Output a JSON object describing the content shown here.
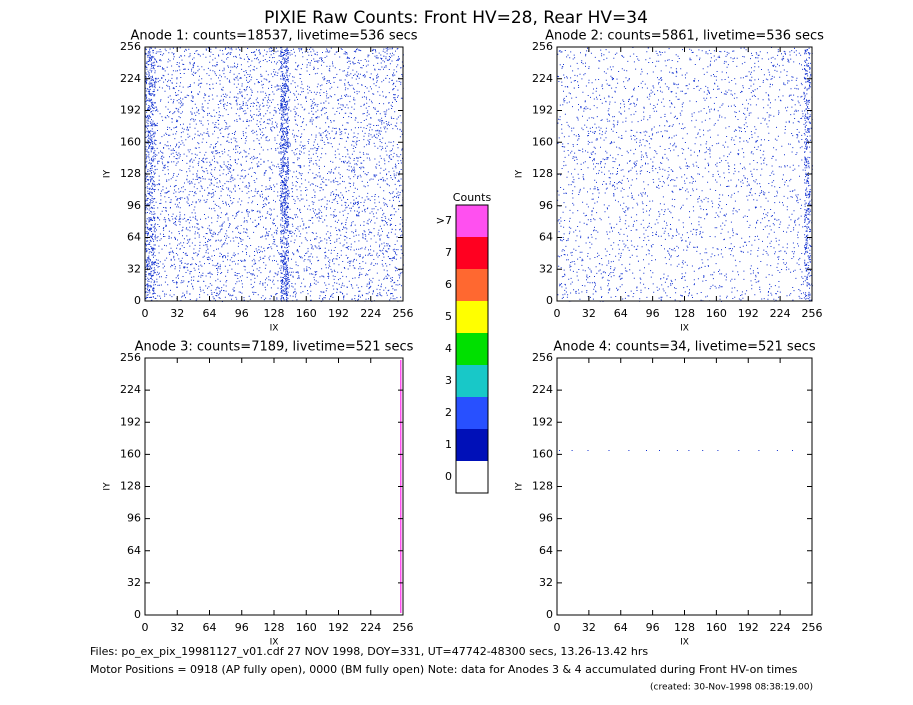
{
  "title": "PIXIE Raw Counts:  Front HV=28, Rear HV=34",
  "chart_data": [
    {
      "type": "heatmap",
      "title": "Anode 1: counts=18537, livetime=536 secs",
      "xlabel": "IX",
      "ylabel": "IY",
      "xlim": [
        0,
        256
      ],
      "ylim": [
        0,
        256
      ],
      "xticks": [
        0,
        32,
        64,
        96,
        128,
        160,
        192,
        224,
        256
      ],
      "yticks": [
        0,
        32,
        64,
        96,
        128,
        160,
        192,
        224,
        256
      ]
    },
    {
      "type": "heatmap",
      "title": "Anode 2: counts=5861, livetime=536 secs",
      "xlabel": "IX",
      "ylabel": "IY",
      "xlim": [
        0,
        256
      ],
      "ylim": [
        0,
        256
      ],
      "xticks": [
        0,
        32,
        64,
        96,
        128,
        160,
        192,
        224,
        256
      ],
      "yticks": [
        0,
        32,
        64,
        96,
        128,
        160,
        192,
        224,
        256
      ]
    },
    {
      "type": "heatmap",
      "title": "Anode 3: counts=7189, livetime=521 secs",
      "xlabel": "IX",
      "ylabel": "IY",
      "xlim": [
        0,
        256
      ],
      "ylim": [
        0,
        256
      ],
      "xticks": [
        0,
        32,
        64,
        96,
        128,
        160,
        192,
        224,
        256
      ],
      "yticks": [
        0,
        32,
        64,
        96,
        128,
        160,
        192,
        224,
        256
      ]
    },
    {
      "type": "heatmap",
      "title": "Anode 4: counts=34, livetime=521 secs",
      "xlabel": "IX",
      "ylabel": "IY",
      "xlim": [
        0,
        256
      ],
      "ylim": [
        0,
        256
      ],
      "xticks": [
        0,
        32,
        64,
        96,
        128,
        160,
        192,
        224,
        256
      ],
      "yticks": [
        0,
        32,
        64,
        96,
        128,
        160,
        192,
        224,
        256
      ]
    }
  ],
  "colorbar": {
    "title": "Counts",
    "labels": [
      "0",
      "1",
      "2",
      "3",
      "4",
      "5",
      "6",
      "7",
      ">7"
    ],
    "colors": [
      "#ffffff",
      "#0010b8",
      "#2850ff",
      "#18c8c8",
      "#00e000",
      "#ffff00",
      "#ff6830",
      "#ff0020",
      "#ff50f0"
    ]
  },
  "footer": {
    "files": "Files: po_ex_pix_19981127_v01.cdf   27 NOV 1998, DOY=331, UT=47742-48300 secs, 13.26-13.42 hrs",
    "motor": "Motor Positions = 0918 (AP fully open), 0000 (BM fully open)    Note: data for Anodes 3 & 4 accumulated during Front HV-on times",
    "created": "(created: 30-Nov-1998 08:38:19.00)"
  }
}
